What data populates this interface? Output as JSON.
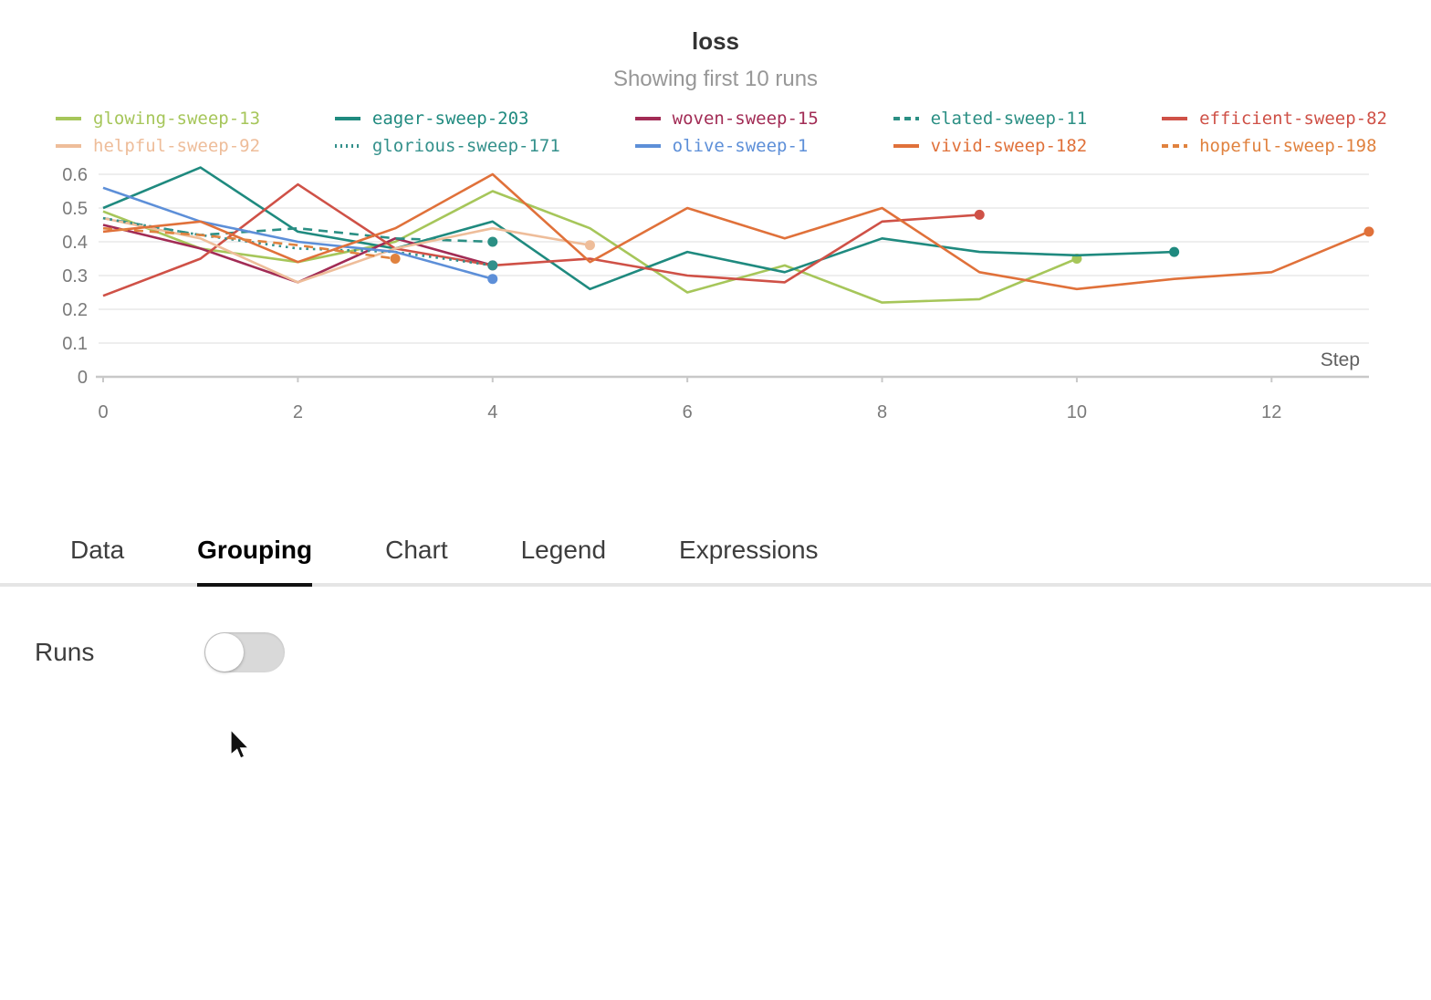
{
  "chart_data": {
    "type": "line",
    "title": "loss",
    "subtitle": "Showing first 10 runs",
    "xlabel": "Step",
    "xlim": [
      0,
      13
    ],
    "ylim": [
      0,
      0.65
    ],
    "x_ticks": [
      0,
      2,
      4,
      6,
      8,
      10,
      12
    ],
    "y_ticks": [
      0,
      0.1,
      0.2,
      0.3,
      0.4,
      0.5,
      0.6
    ],
    "grid": true,
    "legend_position": "top",
    "series": [
      {
        "name": "glowing-sweep-13",
        "color": "#a6c65a",
        "style": "solid",
        "values": [
          0.49,
          0.38,
          0.34,
          0.4,
          0.55,
          0.44,
          0.25,
          0.33,
          0.22,
          0.23,
          0.35
        ]
      },
      {
        "name": "eager-sweep-203",
        "color": "#1f8a7f",
        "style": "solid",
        "values": [
          0.5,
          0.62,
          0.43,
          0.38,
          0.46,
          0.26,
          0.37,
          0.31,
          0.41,
          0.37,
          0.36,
          0.37
        ]
      },
      {
        "name": "woven-sweep-15",
        "color": "#a22c55",
        "style": "solid",
        "values": [
          0.45,
          0.38,
          0.28,
          0.41,
          0.33
        ]
      },
      {
        "name": "elated-sweep-11",
        "color": "#2b8f84",
        "style": "dashed",
        "values": [
          0.47,
          0.42,
          0.44,
          0.41,
          0.4
        ]
      },
      {
        "name": "efficient-sweep-82",
        "color": "#cf5147",
        "style": "solid",
        "values": [
          0.24,
          0.35,
          0.57,
          0.38,
          0.33,
          0.35,
          0.3,
          0.28,
          0.46,
          0.48
        ]
      },
      {
        "name": "helpful-sweep-92",
        "color": "#eebd9a",
        "style": "solid",
        "values": [
          0.47,
          0.41,
          0.28,
          0.38,
          0.44,
          0.39
        ]
      },
      {
        "name": "glorious-sweep-171",
        "color": "#33908b",
        "style": "dotted",
        "values": [
          0.47,
          0.42,
          0.38,
          0.37,
          0.33
        ]
      },
      {
        "name": "olive-sweep-1",
        "color": "#5d8fd8",
        "style": "solid",
        "values": [
          0.56,
          0.46,
          0.4,
          0.37,
          0.29
        ]
      },
      {
        "name": "vivid-sweep-182",
        "color": "#e0713a",
        "style": "solid",
        "values": [
          0.43,
          0.46,
          0.34,
          0.44,
          0.6,
          0.34,
          0.5,
          0.41,
          0.5,
          0.31,
          0.26,
          0.29,
          0.31,
          0.43
        ]
      },
      {
        "name": "hopeful-sweep-198",
        "color": "#e0823f",
        "style": "dashed",
        "values": [
          0.44,
          0.42,
          0.39,
          0.35
        ]
      }
    ]
  },
  "tabs": [
    {
      "label": "Data",
      "active": false
    },
    {
      "label": "Grouping",
      "active": true
    },
    {
      "label": "Chart",
      "active": false
    },
    {
      "label": "Legend",
      "active": false
    },
    {
      "label": "Expressions",
      "active": false
    }
  ],
  "grouping": {
    "runs_label": "Runs",
    "runs_toggle_on": false
  }
}
